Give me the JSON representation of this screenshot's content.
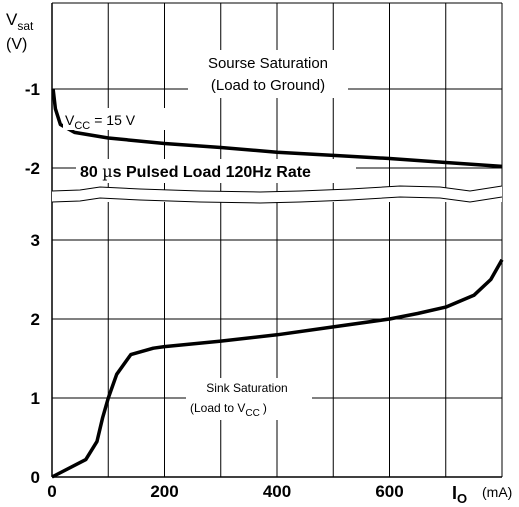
{
  "chart_data": {
    "type": "line",
    "title": "",
    "y_axis_label": {
      "main": "V",
      "sub": "sat",
      "unit": "(V)"
    },
    "x_axis_label": {
      "main": "I",
      "sub": "O",
      "unit": "(mA)"
    },
    "x_ticks": [
      {
        "value": 0,
        "label": "0"
      },
      {
        "value": 200,
        "label": "200"
      },
      {
        "value": 400,
        "label": "400"
      },
      {
        "value": 600,
        "label": "600"
      }
    ],
    "y_ticks": [
      {
        "value": 0,
        "label": "0"
      },
      {
        "value": 1,
        "label": "1"
      },
      {
        "value": 2,
        "label": "2"
      },
      {
        "value": 3,
        "label": "3"
      },
      {
        "value": -2,
        "label": "-2"
      },
      {
        "value": -1,
        "label": "-1"
      }
    ],
    "xlim": [
      0,
      800
    ],
    "grid": true,
    "axis_break": {
      "note": "broken y-axis between the source and sink regions",
      "between": [
        -2,
        3
      ]
    },
    "series": [
      {
        "name": "Sourse Saturation (Load to Ground)",
        "color": "#000000",
        "points": [
          [
            2,
            -1.0
          ],
          [
            6,
            -1.25
          ],
          [
            15,
            -1.45
          ],
          [
            40,
            -1.55
          ],
          [
            100,
            -1.62
          ],
          [
            200,
            -1.69
          ],
          [
            300,
            -1.74
          ],
          [
            400,
            -1.8
          ],
          [
            500,
            -1.84
          ],
          [
            600,
            -1.88
          ],
          [
            700,
            -1.93
          ],
          [
            800,
            -1.98
          ]
        ]
      },
      {
        "name": "Sink Saturation (Load to VCC)",
        "color": "#000000",
        "points": [
          [
            0,
            0.0
          ],
          [
            60,
            0.22
          ],
          [
            80,
            0.45
          ],
          [
            90,
            0.75
          ],
          [
            100,
            1.0
          ],
          [
            115,
            1.3
          ],
          [
            140,
            1.55
          ],
          [
            180,
            1.63
          ],
          [
            200,
            1.65
          ],
          [
            300,
            1.72
          ],
          [
            400,
            1.8
          ],
          [
            500,
            1.9
          ],
          [
            600,
            2.0
          ],
          [
            650,
            2.07
          ],
          [
            700,
            2.15
          ],
          [
            750,
            2.3
          ],
          [
            780,
            2.5
          ],
          [
            800,
            2.75
          ]
        ]
      }
    ],
    "annotations": {
      "source_title_1": "Sourse Saturation",
      "source_title_2": "(Load to Ground)",
      "vcc_main": "V",
      "vcc_sub": "CC",
      "vcc_value": "= 15 V",
      "pulsed_prefix": "80 ",
      "pulsed_mu": "µ",
      "pulsed_rest": "s Pulsed Load 120Hz Rate",
      "sink_title_1": "Sink Saturation",
      "sink_title_2": "(Load to V",
      "sink_sub": "CC",
      "sink_close": ")"
    }
  }
}
